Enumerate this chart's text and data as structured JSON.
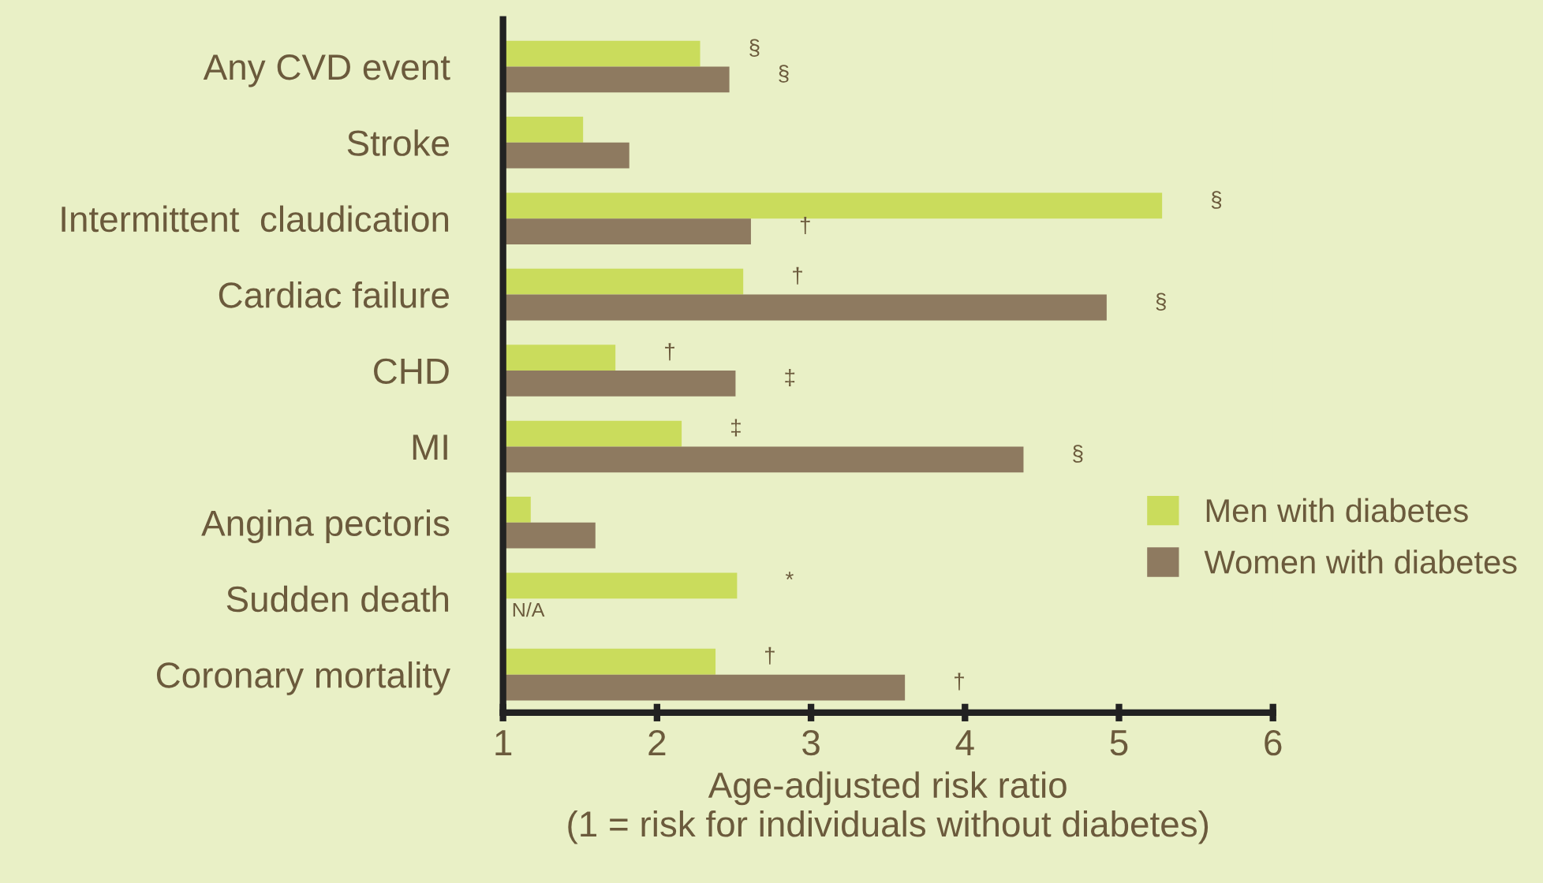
{
  "chart_data": {
    "type": "bar",
    "orientation": "horizontal",
    "xlabel": "Age-adjusted risk ratio\n(1 = risk for individuals without diabetes)",
    "categories": [
      "Any CVD event",
      "Stroke",
      "Intermittent  claudication",
      "Cardiac failure",
      "CHD",
      "MI",
      "Angina pectoris",
      "Sudden death",
      "Coronary mortality"
    ],
    "series": [
      {
        "name": "Men with diabetes",
        "color": "#cadc5c",
        "values": [
          2.28,
          1.52,
          5.28,
          2.56,
          1.73,
          2.16,
          1.18,
          2.52,
          2.38
        ],
        "value_labels": [
          "§",
          null,
          "§",
          "†",
          "†",
          "‡",
          null,
          "*",
          "†"
        ]
      },
      {
        "name": "Women with diabetes",
        "color": "#8e7a60",
        "values": [
          2.47,
          1.82,
          2.61,
          4.92,
          2.51,
          4.38,
          1.6,
          null,
          3.61
        ],
        "value_labels": [
          "§",
          null,
          "†",
          "§",
          "‡",
          "§",
          null,
          "N/A",
          "†"
        ]
      }
    ],
    "xlim": [
      1,
      6
    ],
    "xticks": [
      1,
      2,
      3,
      4,
      5,
      6
    ],
    "grid": false,
    "legend": "right"
  }
}
